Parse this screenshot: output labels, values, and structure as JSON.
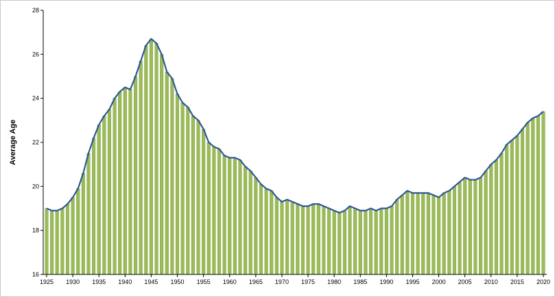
{
  "chart_data": {
    "type": "bar",
    "title": "",
    "xlabel": "",
    "ylabel": "Average Age",
    "ylim": [
      16,
      28
    ],
    "yticks": [
      16,
      18,
      20,
      22,
      24,
      26,
      28
    ],
    "xticks": [
      1925,
      1930,
      1935,
      1940,
      1945,
      1950,
      1955,
      1960,
      1965,
      1970,
      1975,
      1980,
      1985,
      1990,
      1995,
      2000,
      2005,
      2010,
      2015,
      2020
    ],
    "grid": false,
    "legend": "none",
    "colors": {
      "bar_fill": "#9bbb59",
      "bar_edge": "#ffffff",
      "line": "#2e5597",
      "axis": "#000000"
    },
    "series": [
      {
        "kind": "bars-with-line",
        "x": [
          1925,
          1926,
          1927,
          1928,
          1929,
          1930,
          1931,
          1932,
          1933,
          1934,
          1935,
          1936,
          1937,
          1938,
          1939,
          1940,
          1941,
          1942,
          1943,
          1944,
          1945,
          1946,
          1947,
          1948,
          1949,
          1950,
          1951,
          1952,
          1953,
          1954,
          1955,
          1956,
          1957,
          1958,
          1959,
          1960,
          1961,
          1962,
          1963,
          1964,
          1965,
          1966,
          1967,
          1968,
          1969,
          1970,
          1971,
          1972,
          1973,
          1974,
          1975,
          1976,
          1977,
          1978,
          1979,
          1980,
          1981,
          1982,
          1983,
          1984,
          1985,
          1986,
          1987,
          1988,
          1989,
          1990,
          1991,
          1992,
          1993,
          1994,
          1995,
          1996,
          1997,
          1998,
          1999,
          2000,
          2001,
          2002,
          2003,
          2004,
          2005,
          2006,
          2007,
          2008,
          2009,
          2010,
          2011,
          2012,
          2013,
          2014,
          2015,
          2016,
          2017,
          2018,
          2019,
          2020
        ],
        "values": [
          19.0,
          18.9,
          18.9,
          19.0,
          19.2,
          19.5,
          19.9,
          20.6,
          21.5,
          22.2,
          22.8,
          23.2,
          23.5,
          24.0,
          24.3,
          24.5,
          24.4,
          25.0,
          25.7,
          26.4,
          26.7,
          26.5,
          26.0,
          25.2,
          24.9,
          24.2,
          23.8,
          23.6,
          23.2,
          23.0,
          22.6,
          22.0,
          21.8,
          21.7,
          21.4,
          21.3,
          21.3,
          21.2,
          20.9,
          20.7,
          20.4,
          20.1,
          19.9,
          19.8,
          19.5,
          19.3,
          19.4,
          19.3,
          19.2,
          19.1,
          19.1,
          19.2,
          19.2,
          19.1,
          19.0,
          18.9,
          18.8,
          18.9,
          19.1,
          19.0,
          18.9,
          18.9,
          19.0,
          18.9,
          19.0,
          19.0,
          19.1,
          19.4,
          19.6,
          19.8,
          19.7,
          19.7,
          19.7,
          19.7,
          19.6,
          19.5,
          19.7,
          19.8,
          20.0,
          20.2,
          20.4,
          20.3,
          20.3,
          20.4,
          20.7,
          21.0,
          21.2,
          21.5,
          21.9,
          22.1,
          22.3,
          22.6,
          22.9,
          23.1,
          23.2,
          23.4
        ]
      }
    ]
  }
}
